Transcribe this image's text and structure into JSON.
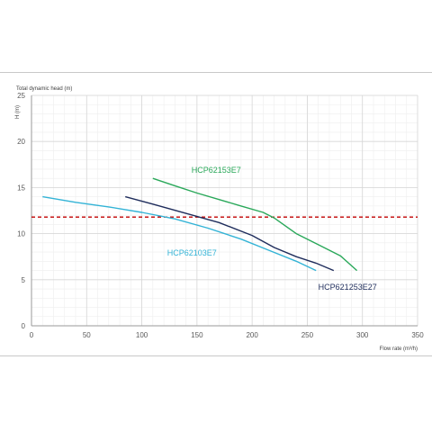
{
  "chart_data": {
    "type": "line",
    "title": "",
    "ylabel_top": "Total dynamic head (m)",
    "ylabel_side": "H (m)",
    "xlabel": "Flow rate (m³/h)",
    "xlim": [
      0,
      350
    ],
    "ylim": [
      0,
      25
    ],
    "xticks": [
      0,
      50,
      100,
      150,
      200,
      250,
      300,
      350
    ],
    "yticks": [
      0,
      5,
      10,
      15,
      20,
      25
    ],
    "grid": true,
    "reference_line": {
      "y": 11.8,
      "style": "dashed",
      "color": "#c00000"
    },
    "series": [
      {
        "name": "HCP62153E7",
        "color": "#2aa85a",
        "label_at": [
          145,
          16.6
        ],
        "points": [
          [
            110,
            16
          ],
          [
            130,
            15.2
          ],
          [
            150,
            14.4
          ],
          [
            170,
            13.7
          ],
          [
            190,
            13
          ],
          [
            210,
            12.3
          ],
          [
            220,
            11.7
          ],
          [
            240,
            10
          ],
          [
            260,
            8.8
          ],
          [
            280,
            7.6
          ],
          [
            295,
            6
          ]
        ]
      },
      {
        "name": "HCP621253E27",
        "color": "#1f2d5c",
        "label_at": [
          260,
          3.9
        ],
        "points": [
          [
            85,
            14
          ],
          [
            110,
            13.2
          ],
          [
            140,
            12.2
          ],
          [
            170,
            11.2
          ],
          [
            200,
            9.8
          ],
          [
            220,
            8.5
          ],
          [
            240,
            7.5
          ],
          [
            258,
            6.8
          ],
          [
            274,
            6
          ]
        ]
      },
      {
        "name": "HCP62103E7",
        "color": "#33b3d6",
        "label_at": [
          123,
          7.6
        ],
        "points": [
          [
            10,
            14
          ],
          [
            40,
            13.4
          ],
          [
            70,
            12.9
          ],
          [
            100,
            12.3
          ],
          [
            130,
            11.6
          ],
          [
            160,
            10.6
          ],
          [
            190,
            9.4
          ],
          [
            215,
            8.2
          ],
          [
            240,
            7
          ],
          [
            258,
            6
          ]
        ]
      }
    ]
  }
}
